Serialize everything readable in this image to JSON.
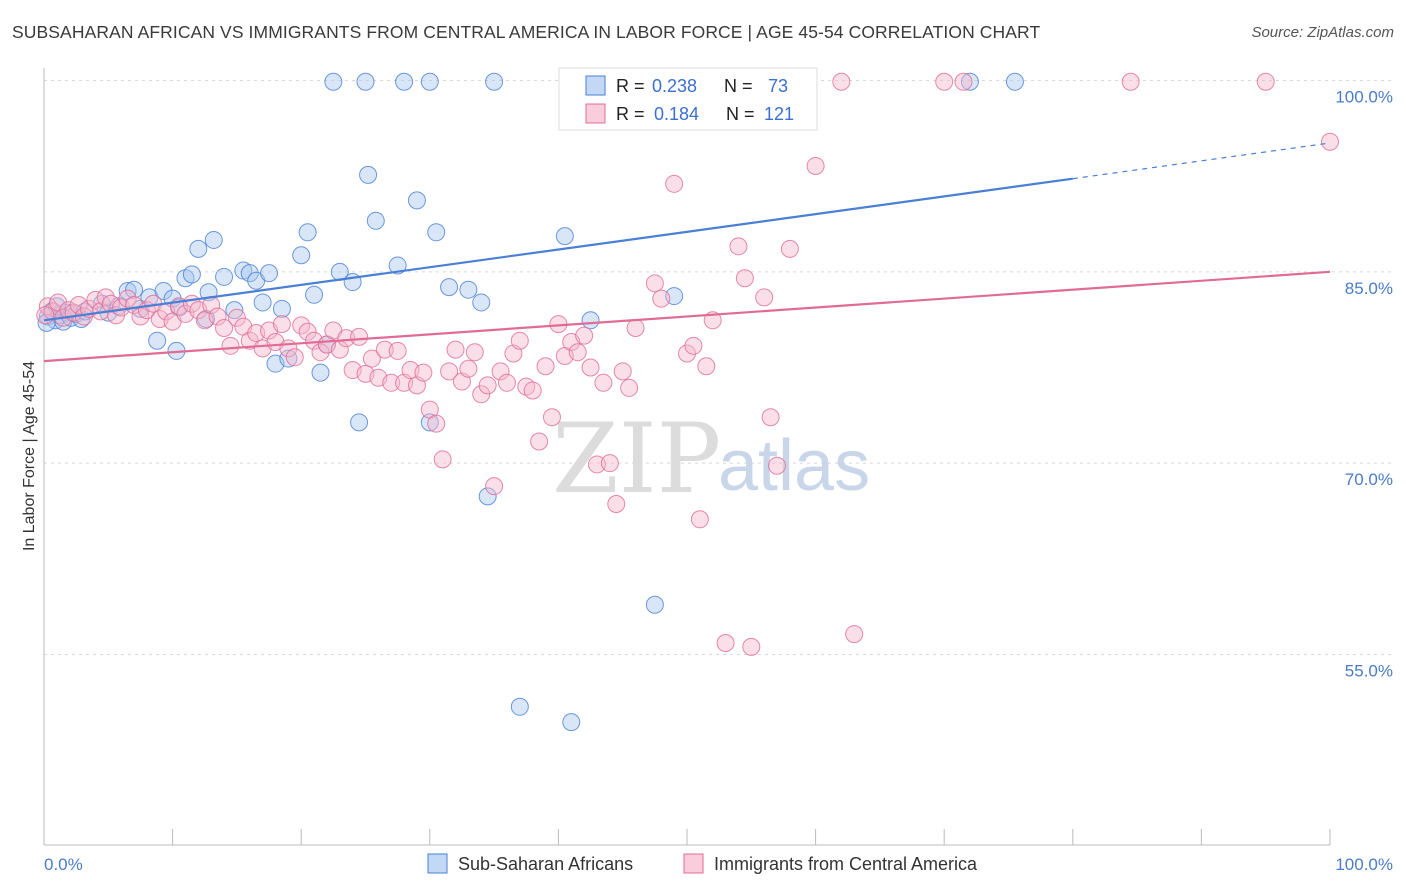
{
  "title": "SUBSAHARAN AFRICAN VS IMMIGRANTS FROM CENTRAL AMERICA IN LABOR FORCE | AGE 45-54 CORRELATION CHART",
  "source": "Source: ZipAtlas.com",
  "watermark": {
    "zip": "ZIP",
    "atlas": "atlas"
  },
  "legend": {
    "r_label": "R =",
    "n_label": "N =",
    "series": [
      {
        "r": "0.238",
        "n": "73"
      },
      {
        "r": "0.184",
        "n": "121"
      }
    ]
  },
  "chart_data": {
    "type": "scatter",
    "xlabel": "",
    "ylabel": "In Labor Force | Age 45-54",
    "xlim": [
      0,
      100
    ],
    "ylim": [
      40,
      102
    ],
    "x_tick_labels": [
      "0.0%",
      "100.0%"
    ],
    "y_ticks": [
      55,
      70,
      85,
      100
    ],
    "y_tick_labels": [
      "55.0%",
      "70.0%",
      "85.0%",
      "100.0%"
    ],
    "grid": true,
    "legend_position": "top-center",
    "colors": {
      "blue": "#4a7fd6",
      "pink": "#e06c96",
      "blue_fill": "#a9c8f0",
      "pink_fill": "#f6b8cc"
    },
    "series": [
      {
        "name": "Sub-Saharan Africans",
        "trend": {
          "x0": 0,
          "y0": 81.2,
          "x1": 80,
          "y1": 92.3,
          "dash_to_x": 100,
          "dash_to_y": 95.1
        },
        "points": [
          [
            0.3,
            81.5
          ],
          [
            0.6,
            81.9
          ],
          [
            0.9,
            81.2
          ],
          [
            1.2,
            81.6
          ],
          [
            1.5,
            81.1
          ],
          [
            1.8,
            81.8
          ],
          [
            2.1,
            81.4
          ],
          [
            2.5,
            81.7
          ],
          [
            2.9,
            81.3
          ],
          [
            3.2,
            81.9
          ],
          [
            4.5,
            82.5
          ],
          [
            5.0,
            81.8
          ],
          [
            5.8,
            82.3
          ],
          [
            6.5,
            83.5
          ],
          [
            7.0,
            83.6
          ],
          [
            7.5,
            82.1
          ],
          [
            8.2,
            83.0
          ],
          [
            8.8,
            79.6
          ],
          [
            9.3,
            83.5
          ],
          [
            10.0,
            82.9
          ],
          [
            10.5,
            82.2
          ],
          [
            10.3,
            78.8
          ],
          [
            11.0,
            84.5
          ],
          [
            11.5,
            84.8
          ],
          [
            12.0,
            86.8
          ],
          [
            12.6,
            81.3
          ],
          [
            12.8,
            83.4
          ],
          [
            13.2,
            87.5
          ],
          [
            14.0,
            84.6
          ],
          [
            14.8,
            82.0
          ],
          [
            15.5,
            85.1
          ],
          [
            16.0,
            84.9
          ],
          [
            16.5,
            84.3
          ],
          [
            17.0,
            82.6
          ],
          [
            17.5,
            84.9
          ],
          [
            18.0,
            77.8
          ],
          [
            18.5,
            82.1
          ],
          [
            19.0,
            78.2
          ],
          [
            20.0,
            86.3
          ],
          [
            20.5,
            88.1
          ],
          [
            21.0,
            83.2
          ],
          [
            21.5,
            77.1
          ],
          [
            22.0,
            79.3
          ],
          [
            22.5,
            99.9
          ],
          [
            23.0,
            85.0
          ],
          [
            24.0,
            84.2
          ],
          [
            25.0,
            99.9
          ],
          [
            24.5,
            73.2
          ],
          [
            25.2,
            92.6
          ],
          [
            25.8,
            89.0
          ],
          [
            28.0,
            99.9
          ],
          [
            27.5,
            85.5
          ],
          [
            29.0,
            90.6
          ],
          [
            30.0,
            99.9
          ],
          [
            30.5,
            88.1
          ],
          [
            30.0,
            73.2
          ],
          [
            31.5,
            83.8
          ],
          [
            33.0,
            83.6
          ],
          [
            35.0,
            99.9
          ],
          [
            34.0,
            82.6
          ],
          [
            34.5,
            67.4
          ],
          [
            37.0,
            50.9
          ],
          [
            40.5,
            87.8
          ],
          [
            41.0,
            49.7
          ],
          [
            42.5,
            81.2
          ],
          [
            44.0,
            99.9
          ],
          [
            47.5,
            58.9
          ],
          [
            49.0,
            83.1
          ],
          [
            56.0,
            99.9
          ],
          [
            72.0,
            99.9
          ],
          [
            75.5,
            99.9
          ],
          [
            0.2,
            81.0
          ],
          [
            1.0,
            82.3
          ]
        ]
      },
      {
        "name": "Immigrants from Central America",
        "trend": {
          "x0": 0,
          "y0": 78.0,
          "x1": 100,
          "y1": 85.0
        },
        "points": [
          [
            0.3,
            82.3
          ],
          [
            0.7,
            81.9
          ],
          [
            1.1,
            82.6
          ],
          [
            1.5,
            81.4
          ],
          [
            1.9,
            82.0
          ],
          [
            2.3,
            81.8
          ],
          [
            2.7,
            82.4
          ],
          [
            3.1,
            81.5
          ],
          [
            3.5,
            82.1
          ],
          [
            4.0,
            82.8
          ],
          [
            4.4,
            81.9
          ],
          [
            4.8,
            83.0
          ],
          [
            5.2,
            82.5
          ],
          [
            5.6,
            81.6
          ],
          [
            6.0,
            82.2
          ],
          [
            6.5,
            82.9
          ],
          [
            7.0,
            82.4
          ],
          [
            7.5,
            81.5
          ],
          [
            8.0,
            82.0
          ],
          [
            8.5,
            82.5
          ],
          [
            9.0,
            81.3
          ],
          [
            9.5,
            81.9
          ],
          [
            10.0,
            81.1
          ],
          [
            10.5,
            82.3
          ],
          [
            11.0,
            81.7
          ],
          [
            11.5,
            82.5
          ],
          [
            12.0,
            82.0
          ],
          [
            12.5,
            81.2
          ],
          [
            13.0,
            82.4
          ],
          [
            13.5,
            81.5
          ],
          [
            14.0,
            80.6
          ],
          [
            14.5,
            79.2
          ],
          [
            15.0,
            81.4
          ],
          [
            15.5,
            80.7
          ],
          [
            16.0,
            79.6
          ],
          [
            16.5,
            80.2
          ],
          [
            17.0,
            79.0
          ],
          [
            17.5,
            80.4
          ],
          [
            18.0,
            79.5
          ],
          [
            18.5,
            80.9
          ],
          [
            19.0,
            79.0
          ],
          [
            19.5,
            78.3
          ],
          [
            20.0,
            80.8
          ],
          [
            20.5,
            80.3
          ],
          [
            21.0,
            79.6
          ],
          [
            21.5,
            78.7
          ],
          [
            22.0,
            79.3
          ],
          [
            22.5,
            80.4
          ],
          [
            23.0,
            78.9
          ],
          [
            23.5,
            79.8
          ],
          [
            24.0,
            77.3
          ],
          [
            24.5,
            79.9
          ],
          [
            25.0,
            77.0
          ],
          [
            25.5,
            78.2
          ],
          [
            26.0,
            76.7
          ],
          [
            26.5,
            78.9
          ],
          [
            27.0,
            76.3
          ],
          [
            27.5,
            78.8
          ],
          [
            28.0,
            76.3
          ],
          [
            28.5,
            77.3
          ],
          [
            29.0,
            76.1
          ],
          [
            29.5,
            77.1
          ],
          [
            30.0,
            74.2
          ],
          [
            30.5,
            73.1
          ],
          [
            31.0,
            70.3
          ],
          [
            31.5,
            77.2
          ],
          [
            32.0,
            78.9
          ],
          [
            32.5,
            76.4
          ],
          [
            33.0,
            77.4
          ],
          [
            33.5,
            78.7
          ],
          [
            34.0,
            75.4
          ],
          [
            34.5,
            76.1
          ],
          [
            35.0,
            68.2
          ],
          [
            35.5,
            77.2
          ],
          [
            36.0,
            76.3
          ],
          [
            36.5,
            78.6
          ],
          [
            37.0,
            79.6
          ],
          [
            37.5,
            76.0
          ],
          [
            38.0,
            75.7
          ],
          [
            38.5,
            71.7
          ],
          [
            39.0,
            77.6
          ],
          [
            39.5,
            73.6
          ],
          [
            40.0,
            80.9
          ],
          [
            40.5,
            78.4
          ],
          [
            41.0,
            79.5
          ],
          [
            41.5,
            78.7
          ],
          [
            42.0,
            80.0
          ],
          [
            42.5,
            77.5
          ],
          [
            43.0,
            69.9
          ],
          [
            43.5,
            76.3
          ],
          [
            44.0,
            70.0
          ],
          [
            44.5,
            66.8
          ],
          [
            45.0,
            77.2
          ],
          [
            45.5,
            75.9
          ],
          [
            46.0,
            80.6
          ],
          [
            46.2,
            99.9
          ],
          [
            47.5,
            84.1
          ],
          [
            48.0,
            82.9
          ],
          [
            49.0,
            91.9
          ],
          [
            50.0,
            78.6
          ],
          [
            50.5,
            79.2
          ],
          [
            51.0,
            65.6
          ],
          [
            51.5,
            77.6
          ],
          [
            52.0,
            81.2
          ],
          [
            53.0,
            55.9
          ],
          [
            54.0,
            87.0
          ],
          [
            54.5,
            84.5
          ],
          [
            55.0,
            55.6
          ],
          [
            56.0,
            83.0
          ],
          [
            56.5,
            73.6
          ],
          [
            57.0,
            69.8
          ],
          [
            58.0,
            86.8
          ],
          [
            60.0,
            93.3
          ],
          [
            62.0,
            99.9
          ],
          [
            63.0,
            56.6
          ],
          [
            70.0,
            99.9
          ],
          [
            71.5,
            99.9
          ],
          [
            84.5,
            99.9
          ],
          [
            95.0,
            99.9
          ],
          [
            100.0,
            95.2
          ],
          [
            0.1,
            81.6
          ]
        ]
      }
    ]
  }
}
